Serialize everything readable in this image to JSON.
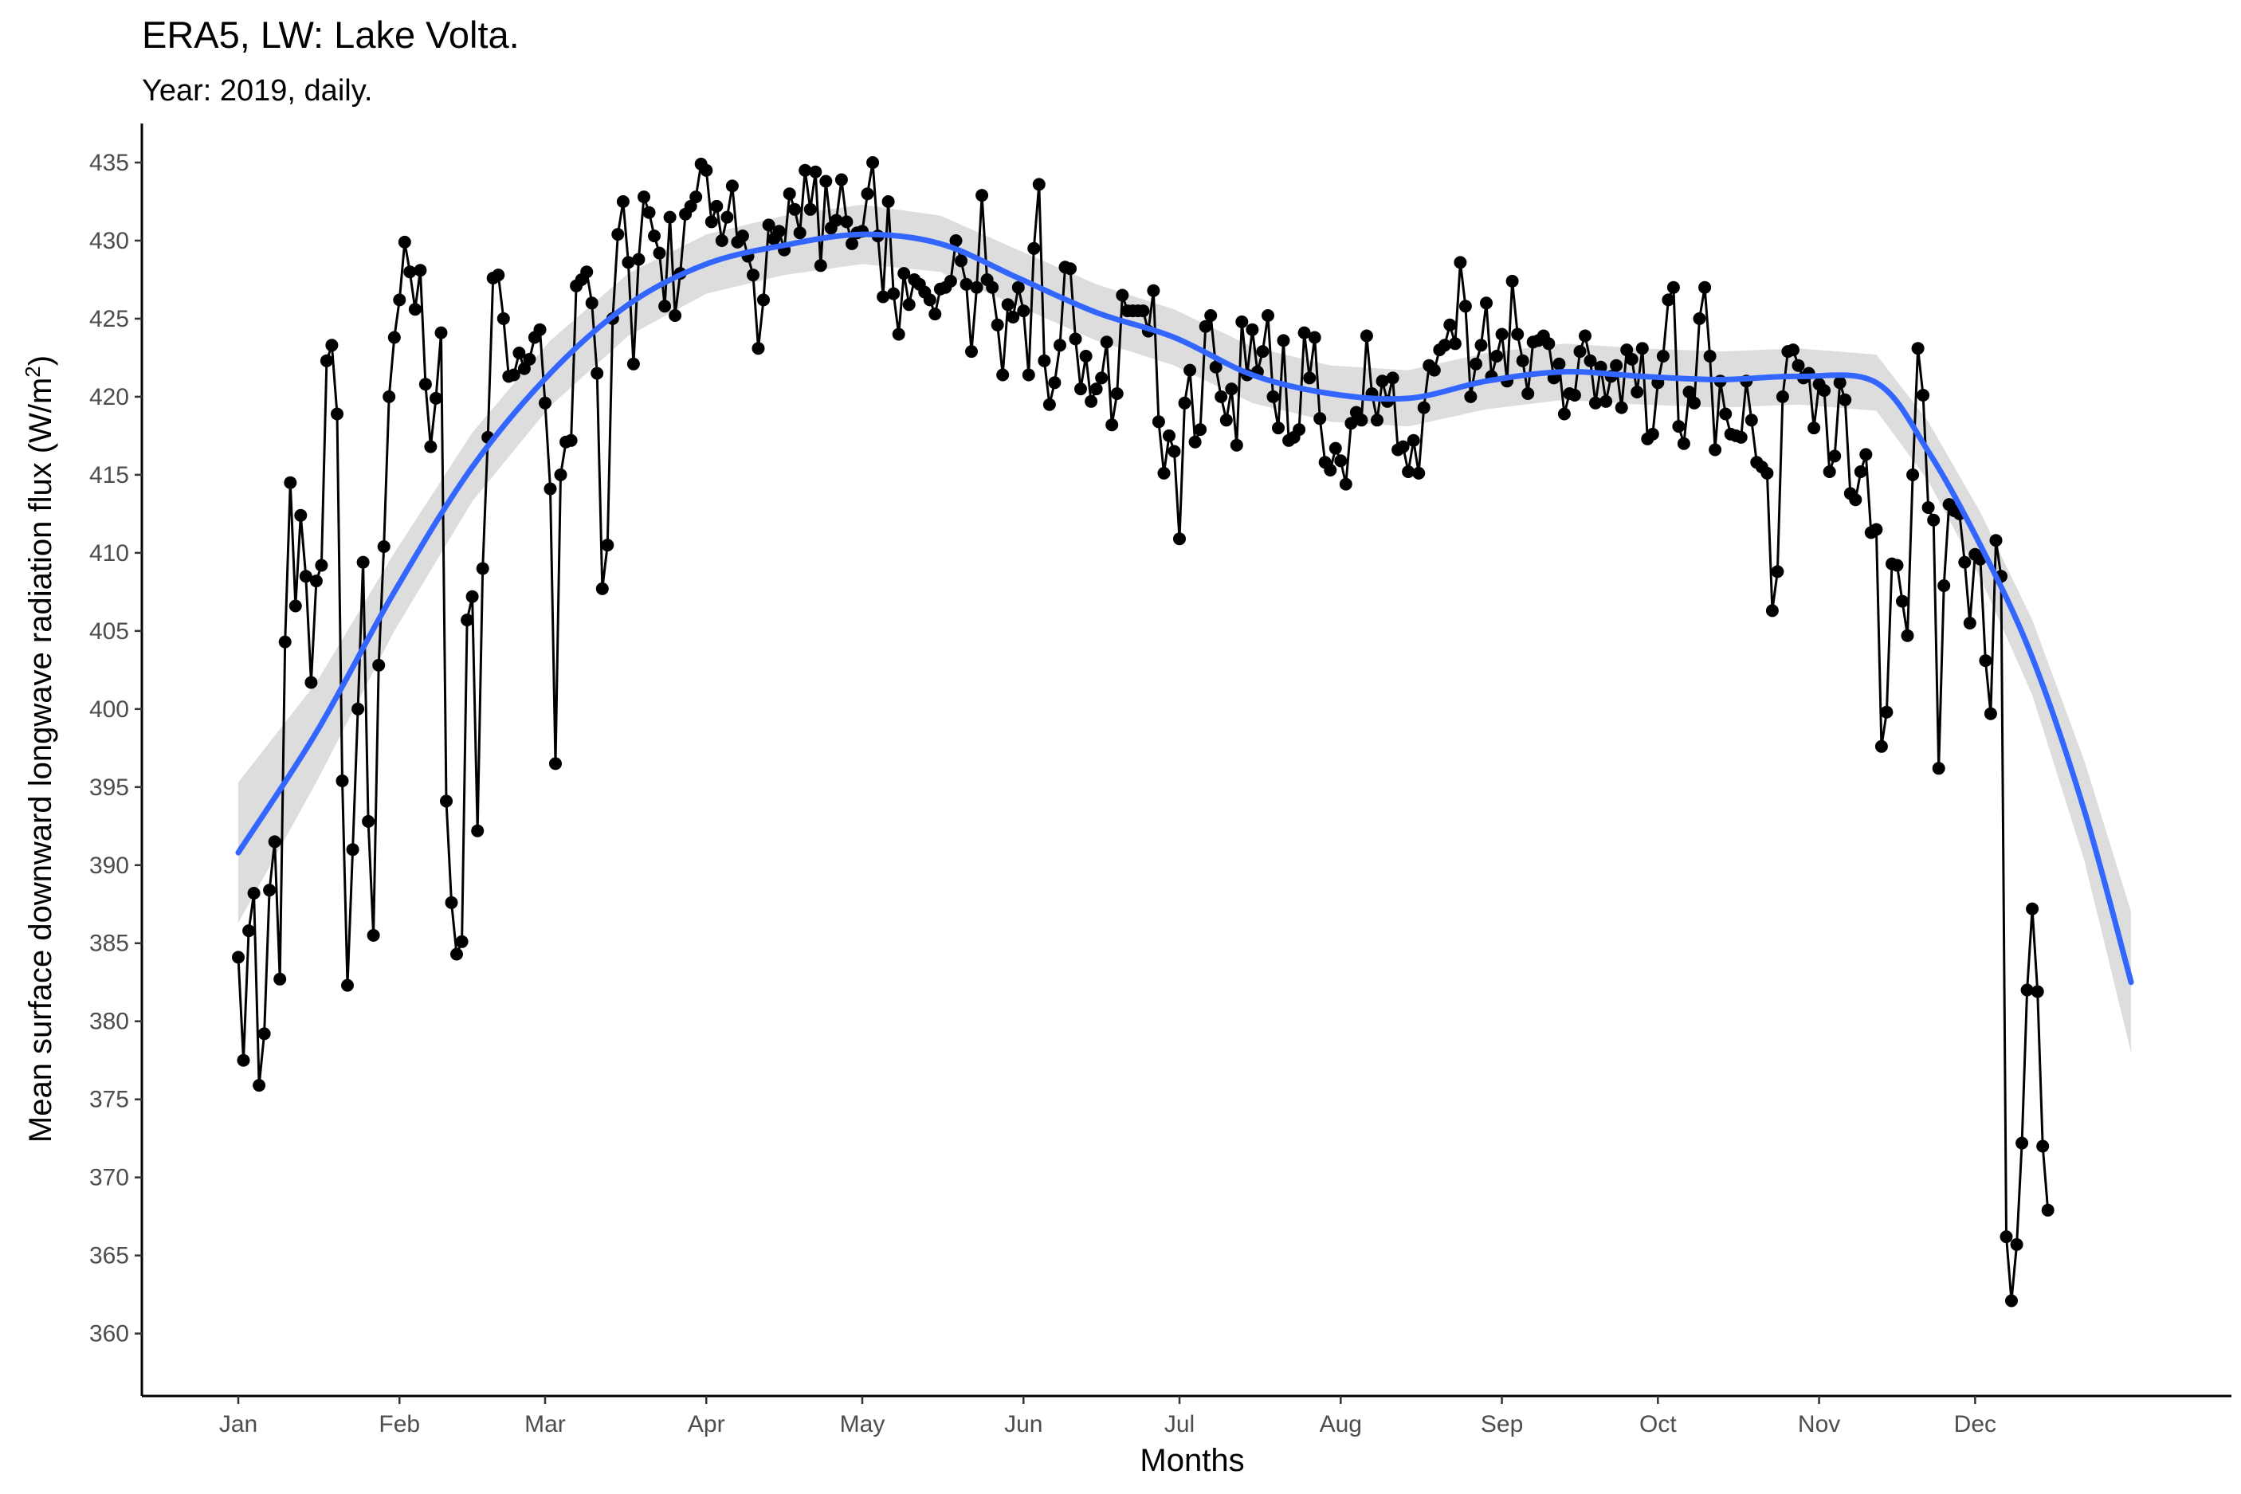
{
  "chart_data": {
    "type": "line",
    "title": "ERA5, LW: Lake Volta.",
    "subtitle": "Year: 2019, daily.",
    "xlabel": "Months",
    "ylabel": "Mean surface downward longwave radiation flux (W/m",
    "ylabel_superscript": "2",
    "ylabel_close": ")",
    "x_ticks": [
      "Jan",
      "Feb",
      "Mar",
      "Apr",
      "May",
      "Jun",
      "Jul",
      "Aug",
      "Sep",
      "Oct",
      "Nov",
      "Dec"
    ],
    "y_ticks": [
      360,
      365,
      370,
      375,
      380,
      385,
      390,
      395,
      400,
      405,
      410,
      415,
      420,
      425,
      430,
      435
    ],
    "ylim": [
      356,
      437.5
    ],
    "xlim_days": [
      -15,
      379
    ],
    "grid": false,
    "legend": "none",
    "colors": {
      "line": "#000000",
      "points": "#000000",
      "smooth": "#3366FF",
      "band": "#d9d9d9"
    },
    "series": [
      {
        "kind": "daily",
        "values": [
          384.1,
          377.5,
          385.8,
          388.2,
          375.9,
          379.2,
          388.4,
          391.5,
          382.7,
          404.3,
          414.5,
          406.6,
          412.4,
          408.5,
          401.7,
          408.2,
          409.2,
          422.3,
          423.3,
          418.9,
          395.4,
          382.3,
          391.0,
          400.0,
          409.4,
          392.8,
          385.5,
          402.8,
          410.4,
          420.0,
          423.8,
          426.2,
          429.9,
          428.0,
          425.6,
          428.1,
          420.8,
          416.8,
          419.9,
          424.1,
          394.1,
          387.6,
          384.3,
          385.1,
          405.7,
          407.2,
          392.2,
          409.0,
          417.4,
          427.6,
          427.8,
          425.0,
          421.3,
          421.4,
          422.8,
          421.8,
          422.4,
          423.8,
          424.3,
          419.6,
          414.1,
          396.5,
          415.0,
          417.1,
          417.2,
          427.1,
          427.5,
          428.0,
          426.0,
          421.5,
          407.7,
          410.5,
          425.0,
          430.4,
          432.5,
          428.6,
          422.1,
          428.8,
          432.8,
          431.8,
          430.3,
          429.2,
          425.8,
          431.5,
          425.2,
          427.9,
          431.7,
          432.2,
          432.8,
          434.9,
          434.5,
          431.2,
          432.2,
          430.0,
          431.5,
          433.5,
          429.9,
          430.3,
          429.0,
          427.8,
          423.1,
          426.2,
          431.0,
          430.1,
          430.6,
          429.4,
          433.0,
          432.0,
          430.5,
          434.5,
          432.0,
          434.4,
          428.4,
          433.8,
          430.8,
          431.3,
          433.9,
          431.2,
          429.8,
          430.5,
          430.6,
          433.0,
          435.0,
          430.3,
          426.4,
          432.5,
          426.6,
          424.0,
          427.9,
          425.9,
          427.5,
          427.2,
          426.7,
          426.2,
          425.3,
          426.9,
          427.0,
          427.4,
          430.0,
          428.7,
          427.2,
          422.9,
          427.0,
          432.9,
          427.5,
          427.0,
          424.6,
          421.4,
          425.9,
          425.1,
          427.0,
          425.5,
          421.4,
          429.5,
          433.6,
          422.3,
          419.5,
          420.9,
          423.3,
          428.3,
          428.2,
          423.7,
          420.5,
          422.6,
          419.7,
          420.5,
          421.2,
          423.5,
          418.2,
          420.2,
          426.5,
          425.5,
          425.5,
          425.5,
          425.5,
          424.2,
          426.8,
          418.4,
          415.1,
          417.5,
          416.5,
          410.9,
          419.6,
          421.7,
          417.1,
          417.9,
          424.5,
          425.2,
          421.9,
          420.0,
          418.5,
          420.5,
          416.9,
          424.8,
          421.4,
          424.3,
          421.6,
          422.9,
          425.2,
          420.0,
          418.0,
          423.6,
          417.2,
          417.4,
          417.9,
          424.1,
          421.2,
          423.8,
          418.6,
          415.8,
          415.3,
          416.7,
          415.9,
          414.4,
          418.3,
          419.0,
          418.5,
          423.9,
          420.2,
          418.5,
          421.0,
          419.7,
          421.2,
          416.6,
          416.8,
          415.2,
          417.2,
          415.1,
          419.3,
          422.0,
          421.7,
          423.0,
          423.3,
          424.6,
          423.4,
          428.6,
          425.8,
          420.0,
          422.1,
          423.3,
          426.0,
          421.3,
          422.6,
          424.0,
          421.0,
          427.4,
          424.0,
          422.3,
          420.2,
          423.5,
          423.6,
          423.9,
          423.4,
          421.2,
          422.1,
          418.9,
          420.2,
          420.1,
          422.9,
          423.9,
          422.3,
          419.6,
          421.9,
          419.7,
          421.3,
          422.0,
          419.3,
          423.0,
          422.4,
          420.3,
          423.1,
          417.3,
          417.6,
          420.9,
          422.6,
          426.2,
          427.0,
          418.1,
          417.0,
          420.3,
          419.6,
          425.0,
          427.0,
          422.6,
          416.6,
          421.0,
          418.9,
          417.6,
          417.5,
          417.4,
          421.0,
          418.5,
          415.8,
          415.5,
          415.1,
          406.3,
          408.8,
          420.0,
          422.9,
          423.0,
          422.0,
          421.2,
          421.5,
          418.0,
          420.8,
          420.4,
          415.2,
          416.2,
          420.9,
          419.8,
          413.8,
          413.4,
          415.2,
          416.3,
          411.3,
          411.5,
          397.6,
          399.8,
          409.3,
          409.2,
          406.9,
          404.7,
          415.0,
          423.1,
          420.1,
          412.9,
          412.1,
          396.2,
          407.9,
          413.1,
          412.7,
          412.5,
          409.4,
          405.5,
          409.9,
          409.6,
          403.1,
          399.7,
          410.8,
          408.5,
          366.2,
          362.1,
          365.7,
          372.2,
          382.0,
          387.2,
          381.9,
          372.0,
          367.9
        ]
      },
      {
        "kind": "smooth",
        "x": [
          0,
          15,
          30,
          45,
          60,
          75,
          90,
          105,
          120,
          135,
          150,
          165,
          180,
          195,
          210,
          225,
          240,
          255,
          270,
          285,
          300,
          315,
          325,
          335,
          345,
          355,
          364
        ],
        "values": [
          390.8,
          398.5,
          407.5,
          415.5,
          421.5,
          425.9,
          428.5,
          429.7,
          430.4,
          429.8,
          427.6,
          425.4,
          423.8,
          421.4,
          420.2,
          419.9,
          421.0,
          421.6,
          421.3,
          421.1,
          421.3,
          420.9,
          416.5,
          410.5,
          403.3,
          393.5,
          382.5
        ],
        "band": [
          4.5,
          3.2,
          2.5,
          2.2,
          2.1,
          2.0,
          1.9,
          1.9,
          1.9,
          1.8,
          1.8,
          1.8,
          1.8,
          1.8,
          1.8,
          1.8,
          1.8,
          1.8,
          1.8,
          1.8,
          1.8,
          1.8,
          1.9,
          2.1,
          2.4,
          3.2,
          4.5
        ]
      }
    ]
  }
}
